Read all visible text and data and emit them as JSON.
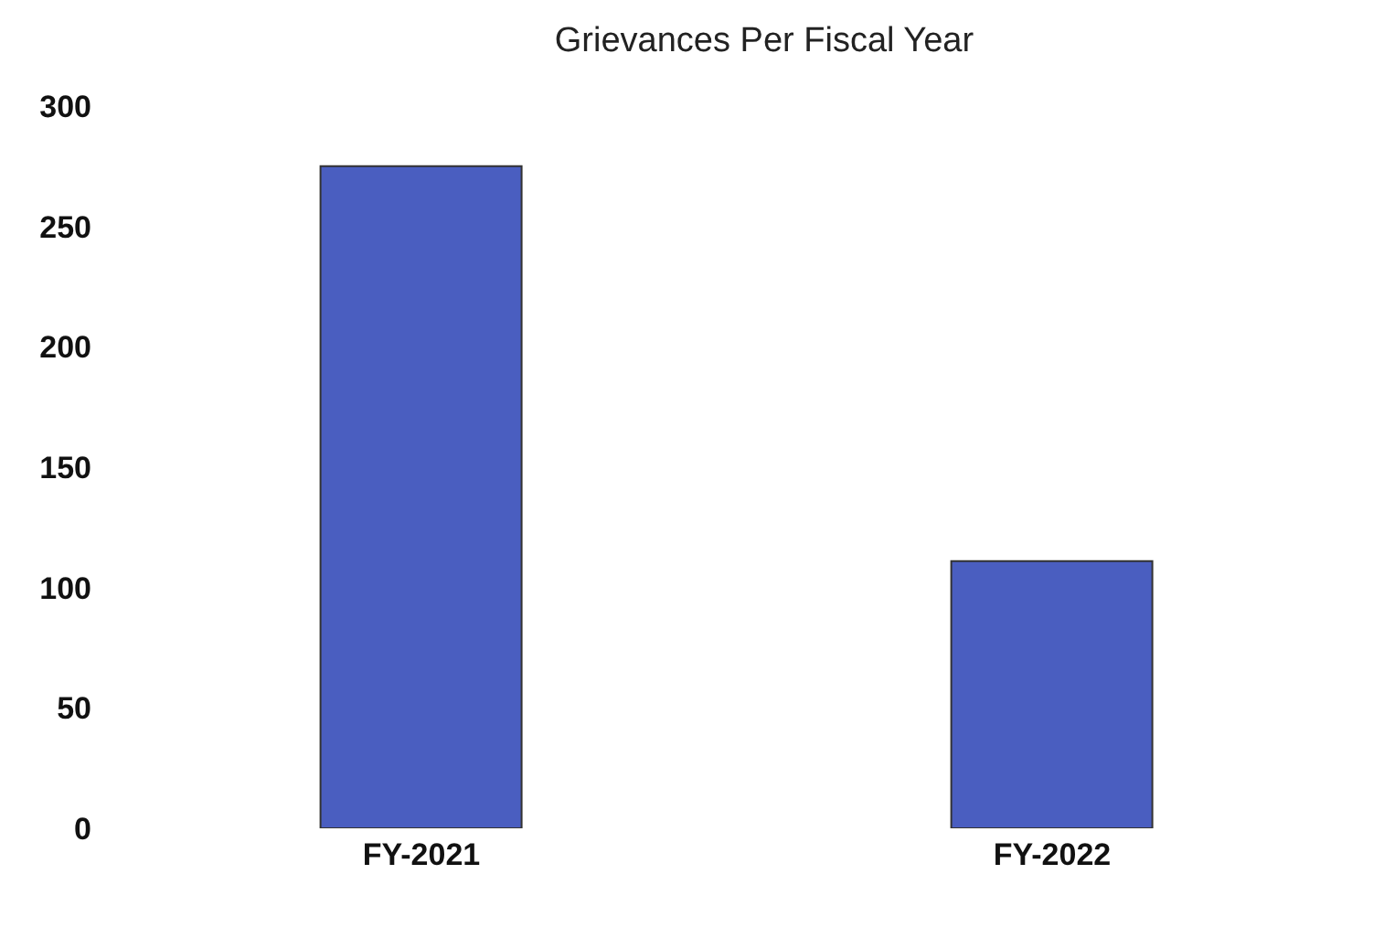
{
  "chart_data": {
    "type": "bar",
    "title": "Grievances Per Fiscal Year",
    "categories": [
      "FY-2021",
      "FY-2022"
    ],
    "values": [
      275,
      111
    ],
    "color": "#4a5ec0",
    "ylim": [
      0,
      300
    ],
    "yticks": [
      0,
      50,
      100,
      150,
      200,
      250,
      300
    ]
  }
}
